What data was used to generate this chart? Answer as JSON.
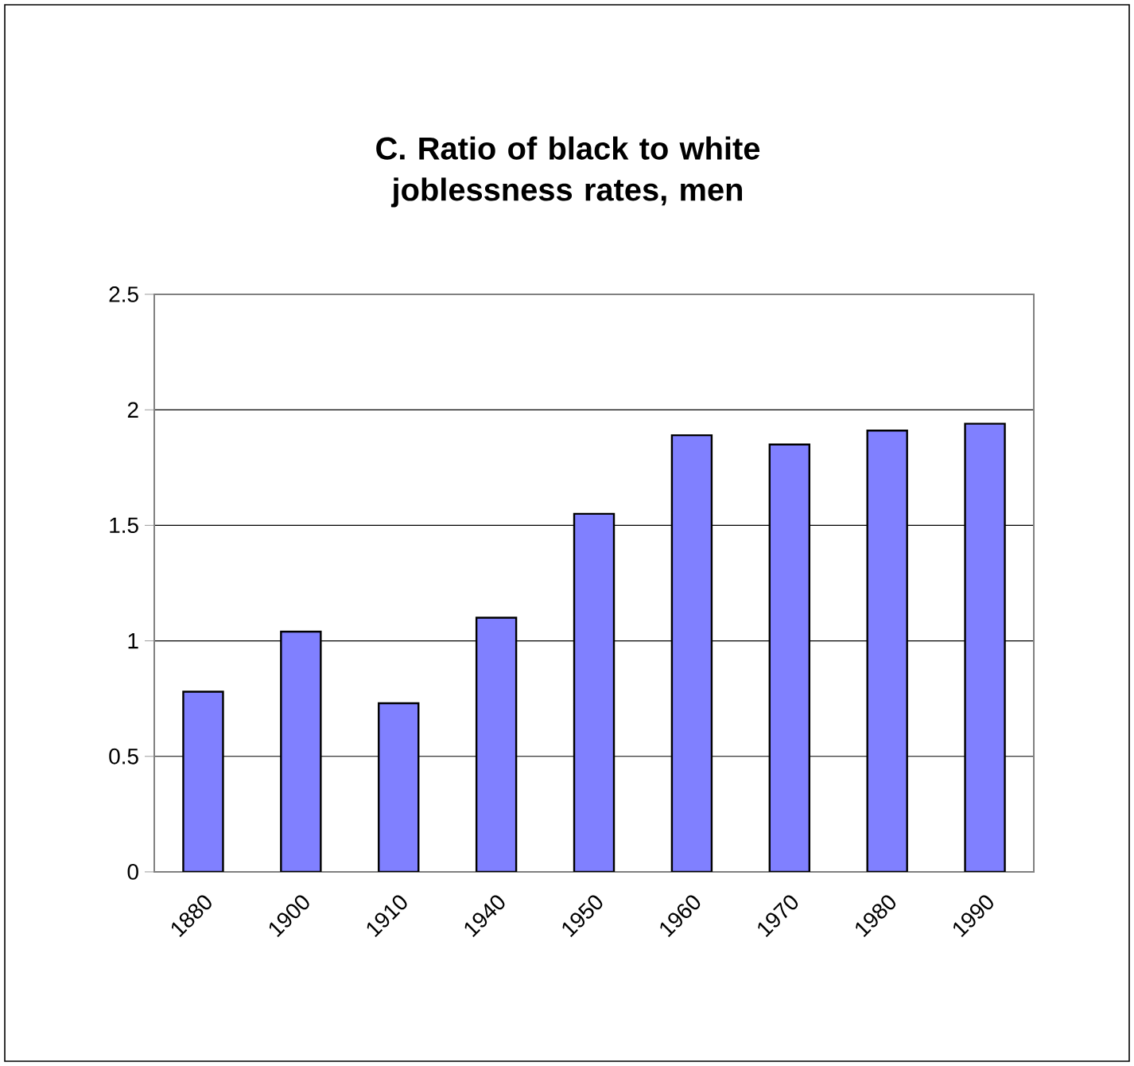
{
  "chart_data": {
    "type": "bar",
    "title": "C.  Ratio of black to white joblessness rates, men",
    "categories": [
      "1880",
      "1900",
      "1910",
      "1940",
      "1950",
      "1960",
      "1970",
      "1980",
      "1990"
    ],
    "values": [
      0.78,
      1.04,
      0.73,
      1.1,
      1.55,
      1.89,
      1.85,
      1.91,
      1.94
    ],
    "color": "#8080ff",
    "ylim": [
      0,
      2.5
    ],
    "yticks": [
      0,
      0.5,
      1,
      1.5,
      2,
      2.5
    ],
    "grid": "y"
  }
}
